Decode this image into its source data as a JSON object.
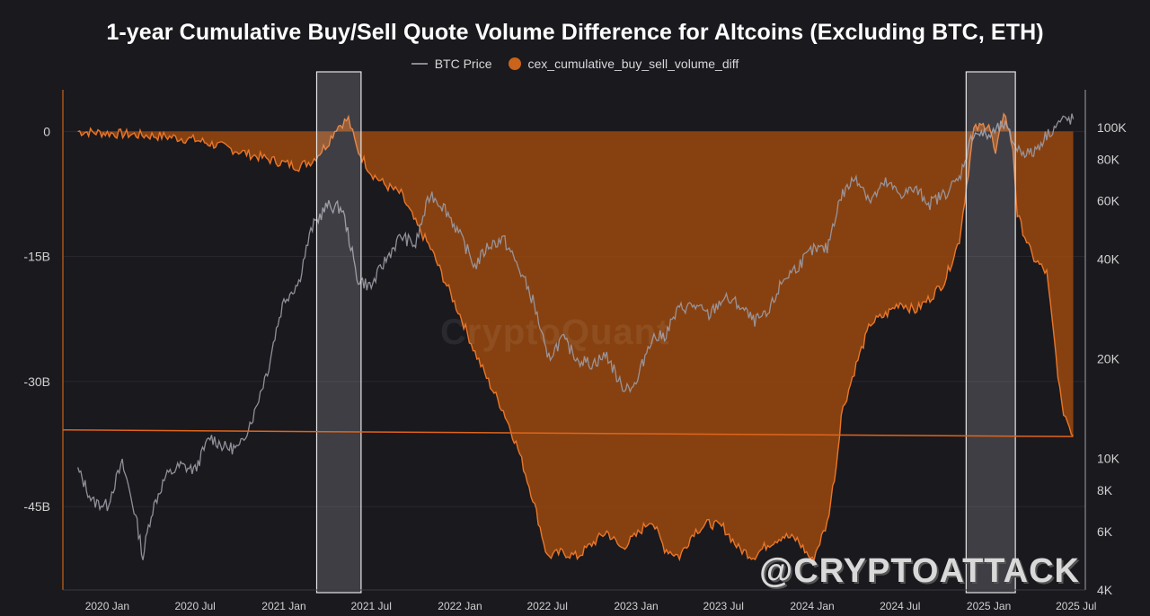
{
  "chart_data": {
    "type": "area+line",
    "title": "1-year Cumulative Buy/Sell Quote Volume Difference for Altcoins (Excluding BTC, ETH)",
    "series": [
      {
        "name": "BTC Price",
        "type": "line",
        "color": "#8a8a94",
        "axis": "right",
        "points": [
          [
            "2019-11-01",
            9200
          ],
          [
            "2019-12-01",
            7400
          ],
          [
            "2020-01-01",
            7200
          ],
          [
            "2020-02-01",
            9600
          ],
          [
            "2020-03-15",
            5000
          ],
          [
            "2020-04-01",
            6800
          ],
          [
            "2020-05-01",
            8800
          ],
          [
            "2020-06-01",
            9500
          ],
          [
            "2020-07-01",
            9200
          ],
          [
            "2020-08-01",
            11600
          ],
          [
            "2020-09-01",
            10800
          ],
          [
            "2020-10-01",
            10700
          ],
          [
            "2020-11-01",
            13700
          ],
          [
            "2020-12-01",
            19000
          ],
          [
            "2021-01-01",
            30000
          ],
          [
            "2021-02-01",
            34000
          ],
          [
            "2021-03-01",
            50000
          ],
          [
            "2021-04-01",
            58000
          ],
          [
            "2021-05-01",
            57000
          ],
          [
            "2021-06-01",
            35000
          ],
          [
            "2021-07-01",
            33000
          ],
          [
            "2021-08-01",
            40000
          ],
          [
            "2021-09-01",
            47000
          ],
          [
            "2021-10-01",
            44000
          ],
          [
            "2021-11-01",
            63000
          ],
          [
            "2021-12-01",
            57000
          ],
          [
            "2022-01-01",
            47000
          ],
          [
            "2022-02-01",
            38000
          ],
          [
            "2022-03-01",
            44000
          ],
          [
            "2022-04-01",
            46000
          ],
          [
            "2022-05-01",
            38000
          ],
          [
            "2022-06-01",
            30000
          ],
          [
            "2022-07-01",
            19800
          ],
          [
            "2022-08-01",
            23000
          ],
          [
            "2022-09-01",
            20000
          ],
          [
            "2022-10-01",
            19300
          ],
          [
            "2022-11-01",
            20500
          ],
          [
            "2022-12-01",
            16500
          ],
          [
            "2023-01-01",
            16600
          ],
          [
            "2023-02-01",
            23000
          ],
          [
            "2023-03-01",
            23500
          ],
          [
            "2023-04-01",
            28400
          ],
          [
            "2023-05-01",
            29000
          ],
          [
            "2023-06-01",
            27000
          ],
          [
            "2023-07-01",
            30500
          ],
          [
            "2023-08-01",
            29200
          ],
          [
            "2023-09-01",
            26000
          ],
          [
            "2023-10-01",
            27000
          ],
          [
            "2023-11-01",
            34500
          ],
          [
            "2023-12-01",
            38000
          ],
          [
            "2024-01-01",
            42500
          ],
          [
            "2024-02-01",
            43000
          ],
          [
            "2024-03-01",
            62000
          ],
          [
            "2024-04-01",
            71000
          ],
          [
            "2024-05-01",
            60000
          ],
          [
            "2024-06-01",
            68000
          ],
          [
            "2024-07-01",
            63000
          ],
          [
            "2024-08-01",
            65000
          ],
          [
            "2024-09-01",
            59000
          ],
          [
            "2024-10-01",
            63000
          ],
          [
            "2024-11-01",
            70000
          ],
          [
            "2024-12-01",
            97000
          ],
          [
            "2025-01-01",
            94000
          ],
          [
            "2025-02-01",
            102000
          ],
          [
            "2025-03-01",
            86000
          ],
          [
            "2025-04-01",
            83000
          ],
          [
            "2025-05-01",
            95000
          ],
          [
            "2025-06-01",
            105000
          ],
          [
            "2025-06-25",
            106000
          ]
        ]
      },
      {
        "name": "cex_cumulative_buy_sell_volume_diff",
        "type": "area",
        "color": "#c9641a",
        "axis": "left",
        "points": [
          [
            "2019-11-01",
            0
          ],
          [
            "2019-12-01",
            -0.1
          ],
          [
            "2020-01-01",
            -0.2
          ],
          [
            "2020-03-01",
            -0.4
          ],
          [
            "2020-05-01",
            -0.6
          ],
          [
            "2020-07-01",
            -1.0
          ],
          [
            "2020-09-01",
            -1.9
          ],
          [
            "2020-11-01",
            -2.9
          ],
          [
            "2021-01-01",
            -3.8
          ],
          [
            "2021-02-01",
            -4.2
          ],
          [
            "2021-03-01",
            -3.5
          ],
          [
            "2021-04-01",
            -1.5
          ],
          [
            "2021-04-20",
            0.5
          ],
          [
            "2021-05-15",
            1.5
          ],
          [
            "2021-06-01",
            -2.0
          ],
          [
            "2021-07-01",
            -5.0
          ],
          [
            "2021-08-01",
            -6.5
          ],
          [
            "2021-09-01",
            -7.5
          ],
          [
            "2021-10-01",
            -11.0
          ],
          [
            "2021-11-01",
            -14.0
          ],
          [
            "2021-12-01",
            -18.0
          ],
          [
            "2022-01-01",
            -22.0
          ],
          [
            "2022-02-01",
            -26.5
          ],
          [
            "2022-03-01",
            -30.0
          ],
          [
            "2022-04-01",
            -33.5
          ],
          [
            "2022-05-01",
            -38.0
          ],
          [
            "2022-06-01",
            -44.0
          ],
          [
            "2022-07-01",
            -51.0
          ],
          [
            "2022-08-01",
            -50.5
          ],
          [
            "2022-09-01",
            -51.0
          ],
          [
            "2022-10-01",
            -49.5
          ],
          [
            "2022-11-01",
            -48.0
          ],
          [
            "2022-12-01",
            -50.0
          ],
          [
            "2023-01-01",
            -48.5
          ],
          [
            "2023-02-01",
            -46.5
          ],
          [
            "2023-03-01",
            -50.0
          ],
          [
            "2023-04-01",
            -51.0
          ],
          [
            "2023-05-01",
            -48.0
          ],
          [
            "2023-06-01",
            -47.0
          ],
          [
            "2023-07-01",
            -47.5
          ],
          [
            "2023-08-01",
            -50.0
          ],
          [
            "2023-09-01",
            -51.0
          ],
          [
            "2023-10-01",
            -49.5
          ],
          [
            "2023-11-01",
            -48.5
          ],
          [
            "2023-12-01",
            -49.0
          ],
          [
            "2024-01-01",
            -51.5
          ],
          [
            "2024-02-01",
            -47.0
          ],
          [
            "2024-02-20",
            -40.0
          ],
          [
            "2024-03-01",
            -34.0
          ],
          [
            "2024-04-01",
            -28.0
          ],
          [
            "2024-05-01",
            -23.0
          ],
          [
            "2024-06-01",
            -22.0
          ],
          [
            "2024-07-01",
            -20.5
          ],
          [
            "2024-08-01",
            -21.5
          ],
          [
            "2024-09-01",
            -20.0
          ],
          [
            "2024-10-01",
            -18.0
          ],
          [
            "2024-11-01",
            -13.0
          ],
          [
            "2024-12-01",
            0.2
          ],
          [
            "2025-01-01",
            1.0
          ],
          [
            "2025-01-15",
            -3.0
          ],
          [
            "2025-02-01",
            2.5
          ],
          [
            "2025-02-20",
            -2.0
          ],
          [
            "2025-03-01",
            -10.0
          ],
          [
            "2025-04-01",
            -15.0
          ],
          [
            "2025-05-01",
            -17.0
          ],
          [
            "2025-06-01",
            -33.0
          ],
          [
            "2025-06-25",
            -36.5
          ]
        ]
      }
    ],
    "left_axis": {
      "ticks": [
        "0",
        "-15B",
        "-30B",
        "-45B"
      ],
      "values": [
        0,
        -15,
        -30,
        -45
      ],
      "range": [
        -55,
        5
      ]
    },
    "right_axis": {
      "scale": "log",
      "ticks": [
        "100K",
        "80K",
        "60K",
        "40K",
        "20K",
        "10K",
        "8K",
        "6K",
        "4K"
      ],
      "values": [
        100000,
        80000,
        60000,
        40000,
        20000,
        10000,
        8000,
        6000,
        4000
      ],
      "range": [
        4000,
        130000
      ]
    },
    "x_axis": {
      "ticks": [
        "2020 Jan",
        "2020 Jul",
        "2021 Jan",
        "2021 Jul",
        "2022 Jan",
        "2022 Jul",
        "2023 Jan",
        "2023 Jul",
        "2024 Jan",
        "2024 Jul",
        "2025 Jan",
        "2025 Jul"
      ],
      "dates": [
        "2020-01-01",
        "2020-07-01",
        "2021-01-01",
        "2021-07-01",
        "2022-01-01",
        "2022-07-01",
        "2023-01-01",
        "2023-07-01",
        "2024-01-01",
        "2024-07-01",
        "2025-01-01",
        "2025-07-01"
      ],
      "range": [
        "2019-10-01",
        "2025-07-20"
      ]
    },
    "annotations": {
      "trendline": {
        "from": [
          "2019-10-01",
          -35.8
        ],
        "to": [
          "2025-06-25",
          -36.6
        ],
        "color": "#e0651c"
      },
      "highlight_boxes": [
        {
          "from": "2021-03-10",
          "to": "2021-06-10"
        },
        {
          "from": "2024-11-15",
          "to": "2025-02-25"
        }
      ]
    },
    "legend": [
      "BTC Price",
      "cex_cumulative_buy_sell_volume_diff"
    ],
    "grid": true
  },
  "watermark": "CryptoQuant",
  "handle": "@CRYPTOATTACK"
}
